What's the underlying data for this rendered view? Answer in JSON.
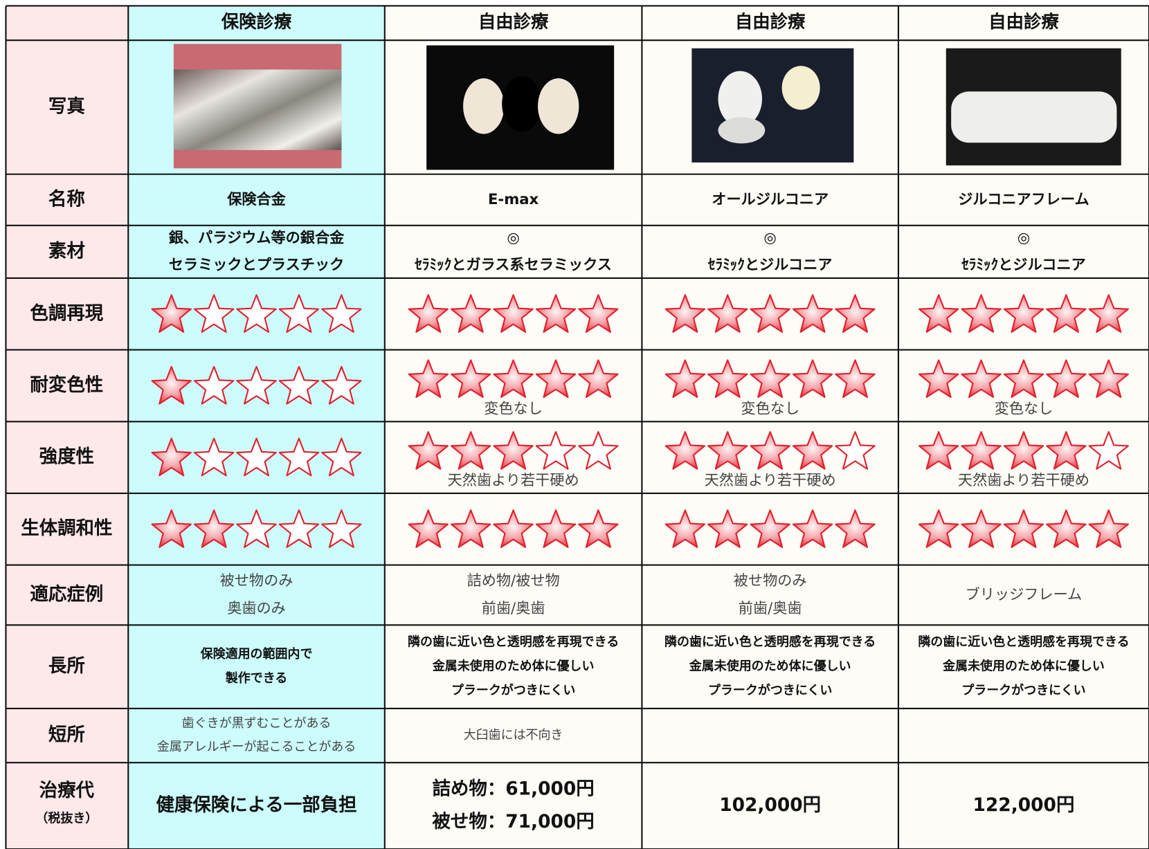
{
  "table": {
    "columns": [
      "保険診療",
      "自由診療",
      "自由診療",
      "自由診療"
    ],
    "rows": [
      {
        "label": "写真"
      },
      {
        "label": "名称",
        "cells": [
          [
            "保険合金"
          ],
          [
            "E-max"
          ],
          [
            "オールジルコニア"
          ],
          [
            "ジルコニアフレーム"
          ]
        ]
      },
      {
        "label": "素材",
        "cells": [
          [
            "銀、パラジウム等の銀合金",
            "セラミックとプラスチック"
          ],
          [
            "◎",
            "ｾﾗﾐｯｸとガラス系セラミックス"
          ],
          [
            "◎",
            "ｾﾗﾐｯｸとジルコニア"
          ],
          [
            "◎",
            "ｾﾗﾐｯｸとジルコニア"
          ]
        ]
      },
      {
        "label": "色調再現",
        "scale": 5,
        "ratings": [
          {
            "rating": 1
          },
          {
            "rating": 5
          },
          {
            "rating": 5
          },
          {
            "rating": 5
          }
        ]
      },
      {
        "label": "耐変色性",
        "scale": 5,
        "ratings": [
          {
            "rating": 1
          },
          {
            "rating": 5,
            "note": "変色なし"
          },
          {
            "rating": 5,
            "note": "変色なし"
          },
          {
            "rating": 5,
            "note": "変色なし"
          }
        ]
      },
      {
        "label": "強度性",
        "scale": 5,
        "ratings": [
          {
            "rating": 1
          },
          {
            "rating": 3,
            "note": "天然歯より若干硬め"
          },
          {
            "rating": 4,
            "note": "天然歯より若干硬め"
          },
          {
            "rating": 4,
            "note": "天然歯より若干硬め"
          }
        ]
      },
      {
        "label": "生体調和性",
        "scale": 5,
        "ratings": [
          {
            "rating": 2
          },
          {
            "rating": 5
          },
          {
            "rating": 5
          },
          {
            "rating": 5
          }
        ]
      },
      {
        "label": "適応症例",
        "cells": [
          [
            "被せ物のみ",
            "奥歯のみ"
          ],
          [
            "詰め物/被せ物",
            "前歯/奥歯"
          ],
          [
            "被せ物のみ",
            "前歯/奥歯"
          ],
          [
            "ブリッジフレーム"
          ]
        ]
      },
      {
        "label": "長所",
        "cells": [
          [
            "保険適用の範囲内で",
            "製作できる"
          ],
          [
            "隣の歯に近い色と透明感を再現できる",
            "金属未使用のため体に優しい",
            "プラークがつきにくい"
          ],
          [
            "隣の歯に近い色と透明感を再現できる",
            "金属未使用のため体に優しい",
            "プラークがつきにくい"
          ],
          [
            "隣の歯に近い色と透明感を再現できる",
            "金属未使用のため体に優しい",
            "プラークがつきにくい"
          ]
        ]
      },
      {
        "label": "短所",
        "cells": [
          [
            "歯ぐきが黒ずむことがある",
            "金属アレルギーが起こることがある"
          ],
          [
            "大臼歯には不向き"
          ],
          [],
          []
        ]
      },
      {
        "label": [
          "治療代",
          "（税抜き）"
        ],
        "cells": [
          [
            "健康保険による一部負担"
          ],
          [
            "詰め物：61,000円",
            "被せ物：71,000円"
          ],
          [
            "102,000円"
          ],
          [
            "122,000円"
          ]
        ]
      }
    ]
  }
}
